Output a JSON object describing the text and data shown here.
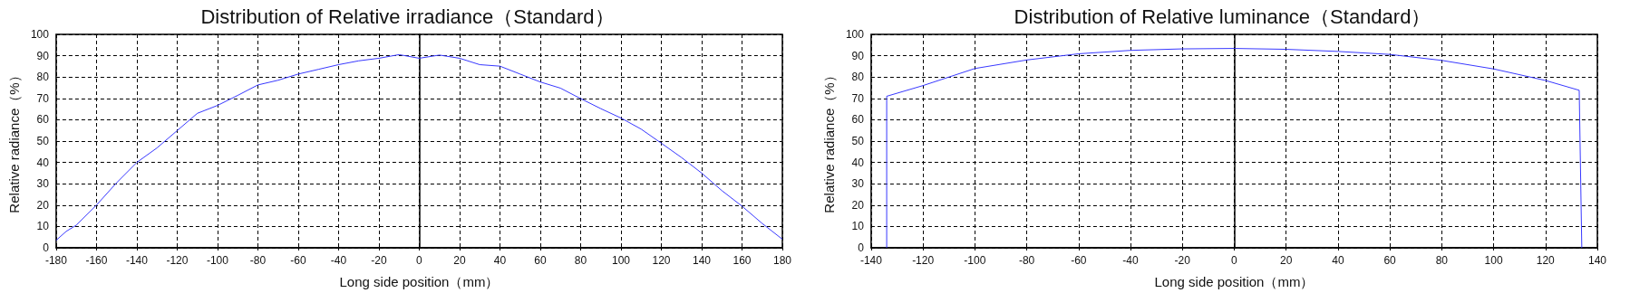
{
  "chart_data": [
    {
      "type": "line",
      "title": "Distribution of Relative irradiance（Standard）",
      "xlabel": "Long side position（mm）",
      "ylabel": "Relative radiance（%）",
      "x": [
        -180,
        -175,
        -170,
        -160,
        -150,
        -140,
        -130,
        -120,
        -110,
        -100,
        -90,
        -80,
        -70,
        -60,
        -50,
        -40,
        -30,
        -20,
        -10,
        0,
        10,
        20,
        30,
        40,
        50,
        60,
        70,
        80,
        90,
        100,
        110,
        120,
        130,
        140,
        150,
        160,
        170,
        175,
        180
      ],
      "series": [
        {
          "color": "#3838ff",
          "values": [
            3.5,
            7.7,
            10.6,
            20,
            30.5,
            40,
            46.8,
            54.9,
            63,
            66.7,
            71.4,
            76.3,
            78.5,
            81.4,
            83.6,
            85.8,
            87.6,
            88.8,
            90.5,
            88.8,
            90.3,
            88.8,
            85.8,
            85.1,
            81.4,
            77.7,
            74.8,
            69.9,
            65.2,
            60.8,
            55.6,
            49,
            42.3,
            35,
            26.8,
            19.5,
            11.4,
            7.7,
            4
          ]
        }
      ],
      "xlim": [
        -180,
        180
      ],
      "xticks": [
        -180,
        -160,
        -140,
        -120,
        -100,
        -80,
        -60,
        -40,
        -20,
        0,
        20,
        40,
        60,
        80,
        100,
        120,
        140,
        160,
        180
      ],
      "ylim": [
        0,
        100
      ],
      "yticks": [
        0,
        10,
        20,
        30,
        40,
        50,
        60,
        70,
        80,
        90,
        100
      ],
      "grid": true,
      "line_style": "solid"
    },
    {
      "type": "line",
      "title": "Distribution of Relative luminance（Standard）",
      "xlabel": "Long side position（mm）",
      "ylabel": "Relative radiance（%）",
      "x": [
        -134,
        -134,
        -120,
        -100,
        -80,
        -60,
        -40,
        -20,
        0,
        20,
        40,
        60,
        80,
        100,
        120,
        133,
        134
      ],
      "series": [
        {
          "color": "#3838ff",
          "values": [
            0,
            71,
            76,
            84,
            88,
            90.9,
            92.5,
            93.2,
            93.4,
            93,
            92,
            90.6,
            87.8,
            83.8,
            78.4,
            73.8,
            0
          ]
        }
      ],
      "xlim": [
        -140,
        140
      ],
      "xticks": [
        -140,
        -120,
        -100,
        -80,
        -60,
        -40,
        -20,
        0,
        20,
        40,
        60,
        80,
        100,
        120,
        140
      ],
      "ylim": [
        0,
        100
      ],
      "yticks": [
        0,
        10,
        20,
        30,
        40,
        50,
        60,
        70,
        80,
        90,
        100
      ],
      "grid": true,
      "line_style": "solid"
    }
  ]
}
